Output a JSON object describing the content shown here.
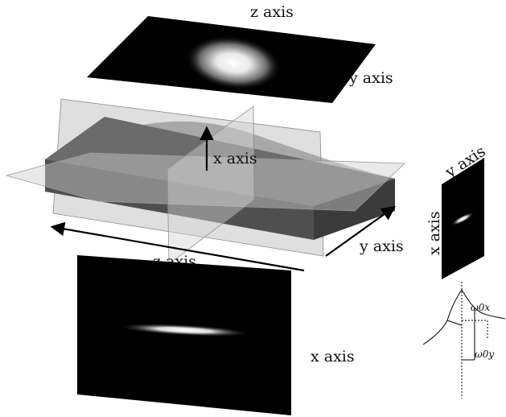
{
  "labels": {
    "top_panel_z": "z axis",
    "top_panel_y": "y axis",
    "center_x": "x axis",
    "bottom_z": "z axis",
    "bottom_y": "y axis",
    "bottom_panel_x": "x axis",
    "side_panel_y": "y axis",
    "side_panel_x": "x axis",
    "omega_x": "ω0x",
    "omega_y": "ω0y"
  },
  "colors": {
    "panel": "#000000",
    "slab_top": "#6e6e6e",
    "slab_front": "#4a4a4a",
    "slab_side": "#3a3a3a",
    "plane": "#c8c8c8",
    "arrow": "#000000"
  }
}
